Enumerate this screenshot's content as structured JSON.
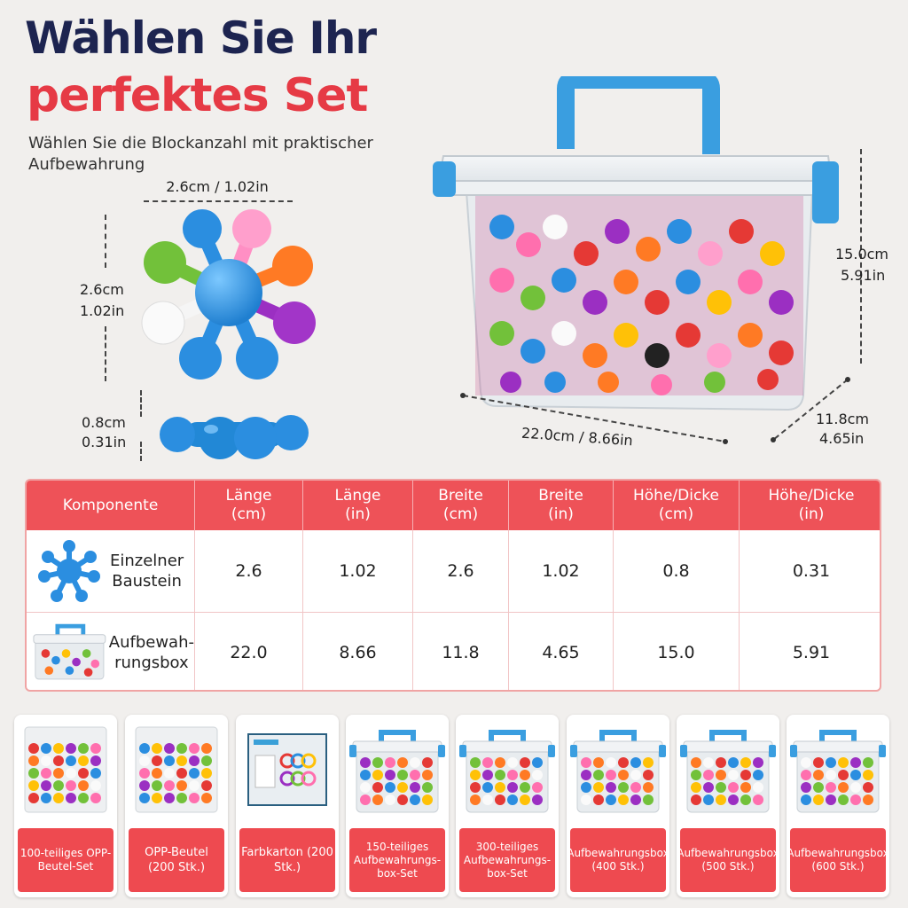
{
  "header": {
    "title_line1": "Wählen Sie Ihr",
    "title_line2": "perfektes Set",
    "subtitle": "Wählen Sie die Blockanzahl mit praktischer Aufbewahrung"
  },
  "dimensions": {
    "block_width": "2.6cm / 1.02in",
    "block_height_cm": "2.6cm",
    "block_height_in": "1.02in",
    "block_thickness_cm": "0.8cm",
    "block_thickness_in": "0.31in",
    "box_height_cm": "15.0cm",
    "box_height_in": "5.91in",
    "box_length": "22.0cm / 8.66in",
    "box_depth_cm": "11.8cm",
    "box_depth_in": "4.65in"
  },
  "table": {
    "headers": [
      {
        "l1": "Komponente",
        "l2": ""
      },
      {
        "l1": "Länge",
        "l2": "(cm)"
      },
      {
        "l1": "Länge",
        "l2": "(in)"
      },
      {
        "l1": "Breite",
        "l2": "(cm)"
      },
      {
        "l1": "Breite",
        "l2": "(in)"
      },
      {
        "l1": "Höhe/Dicke",
        "l2": "(cm)"
      },
      {
        "l1": "Höhe/Dicke",
        "l2": "(in)"
      }
    ],
    "rows": [
      {
        "label_l1": "Einzelner",
        "label_l2": "Baustein",
        "values": [
          "2.6",
          "1.02",
          "2.6",
          "1.02",
          "0.8",
          "0.31"
        ]
      },
      {
        "label_l1": "Aufbewah-",
        "label_l2": "rungsbox",
        "values": [
          "22.0",
          "8.66",
          "11.8",
          "4.65",
          "15.0",
          "5.91"
        ]
      }
    ]
  },
  "sets": [
    {
      "label": "100-teiliges OPP-Beutel-Set",
      "kind": "bag"
    },
    {
      "label": "OPP-Beutel (200 Stk.)",
      "kind": "bag"
    },
    {
      "label": "Farbkarton (200 Stk.)",
      "kind": "carton"
    },
    {
      "label": "150-teiliges Aufbewahrungs-box-Set",
      "kind": "box"
    },
    {
      "label": "300-teiliges Aufbewahrungs-box-Set",
      "kind": "box"
    },
    {
      "label": "Aufbewahrungsbox (400 Stk.)",
      "kind": "box"
    },
    {
      "label": "Aufbewahrungsbox (500 Stk.)",
      "kind": "box"
    },
    {
      "label": "Aufbewahrungsbox (600 Stk.)",
      "kind": "box"
    }
  ],
  "colors": {
    "title_navy": "#1d2450",
    "title_red": "#e63a45",
    "table_header": "#ee5258",
    "label_red": "#ee4a50",
    "handle_blue": "#3a9ee0"
  }
}
